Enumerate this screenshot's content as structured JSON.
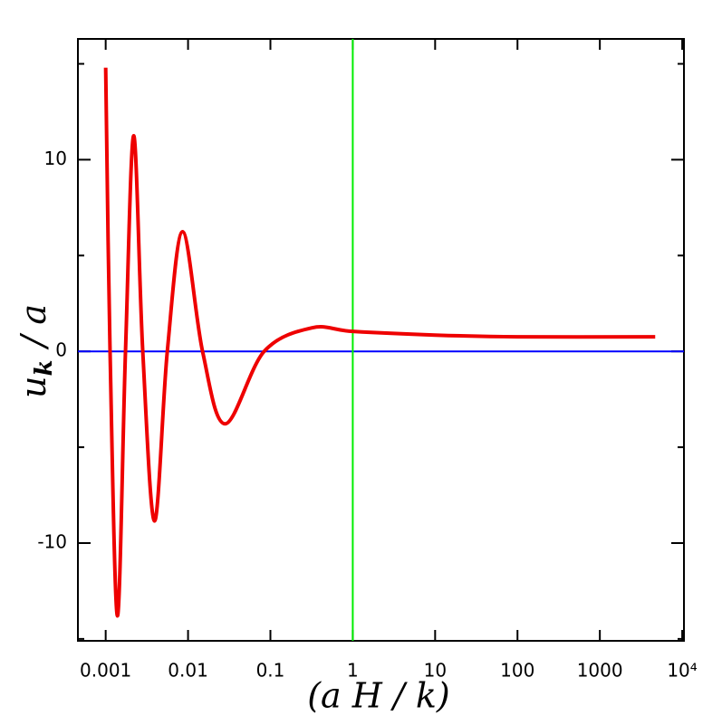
{
  "chart_data": {
    "type": "line",
    "log_x": true,
    "xlabel": "(a  H / k)",
    "ylabel": [
      "u",
      "k",
      "/ a"
    ],
    "xlim": [
      0.00046,
      10500
    ],
    "ylim": [
      -15.1,
      16.3
    ],
    "xticks": [
      0.001,
      0.01,
      0.1,
      1,
      10,
      100,
      1000,
      {
        "value": 10000,
        "label": "10⁴"
      }
    ],
    "yticks": [
      -10,
      0,
      10
    ],
    "yminor": [
      -15,
      -5,
      5,
      15
    ],
    "vline": {
      "x": 1,
      "color": "#00ee00"
    },
    "hline": {
      "y": 0,
      "color": "#0000ff"
    },
    "x": [
      0.001,
      0.00113,
      0.00139,
      0.00174,
      0.00219,
      0.00282,
      0.00392,
      0.0056,
      0.0086,
      0.015,
      0.0282,
      0.084,
      0.32,
      1,
      10,
      100,
      4700
    ],
    "series": [
      {
        "color": "#ee0000",
        "values": [
          14.8,
          0,
          -13.8,
          0,
          11.25,
          0,
          -8.85,
          0,
          6.24,
          0,
          -3.78,
          0,
          1.23,
          1.04,
          0.85,
          0.76,
          0.76
        ]
      }
    ]
  }
}
